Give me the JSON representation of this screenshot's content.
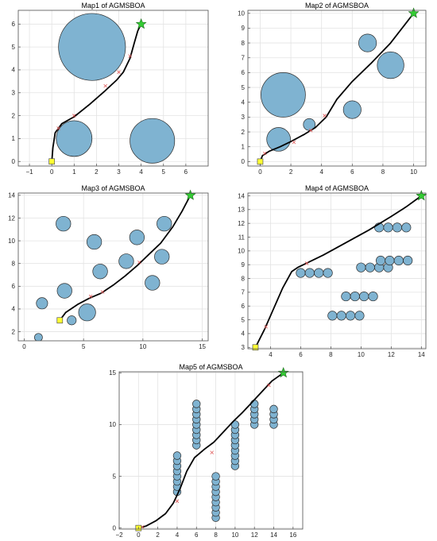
{
  "colors": {
    "obstacle_fill": "#7fb3d1",
    "obstacle_stroke": "#2b2b2b",
    "path": "#000000",
    "waypoint": "#e05a5a",
    "start_marker": "#ffff33",
    "goal_marker": "#33cc33",
    "grid": "#e3e3e3",
    "axes": "#4d4d4d"
  },
  "markers": {
    "start": "yellow-square",
    "goal": "green-star"
  },
  "chart_data": [
    {
      "type": "scatter",
      "title": "Map1 of AGMSBOA",
      "xlim": [
        -1.5,
        7
      ],
      "ylim": [
        -0.2,
        6.6
      ],
      "xticks": [
        -1,
        0,
        1,
        2,
        3,
        4,
        5,
        6
      ],
      "yticks": [
        0,
        1,
        2,
        3,
        4,
        5,
        6
      ],
      "grid": true,
      "start": [
        0,
        0
      ],
      "goal": [
        4,
        6
      ],
      "obstacles": [
        {
          "x": 1.8,
          "y": 5.0,
          "r": 1.5
        },
        {
          "x": 1.0,
          "y": 1.0,
          "r": 0.8
        },
        {
          "x": 4.5,
          "y": 0.9,
          "r": 1.0
        }
      ],
      "path": [
        [
          0,
          0
        ],
        [
          0.05,
          0.6
        ],
        [
          0.15,
          1.25
        ],
        [
          0.45,
          1.65
        ],
        [
          1.0,
          1.95
        ],
        [
          1.7,
          2.5
        ],
        [
          2.4,
          3.1
        ],
        [
          2.9,
          3.55
        ],
        [
          3.2,
          3.9
        ],
        [
          3.5,
          4.5
        ],
        [
          3.7,
          5.2
        ],
        [
          3.85,
          5.7
        ],
        [
          4,
          6
        ]
      ],
      "waypoints": [
        [
          0.3,
          1.45
        ],
        [
          1.0,
          2.0
        ],
        [
          2.4,
          3.3
        ],
        [
          3.0,
          3.9
        ],
        [
          3.5,
          4.6
        ]
      ]
    },
    {
      "type": "scatter",
      "title": "Map2 of AGMSBOA",
      "xlim": [
        -0.8,
        10.8
      ],
      "ylim": [
        -0.3,
        10.2
      ],
      "xticks": [
        0,
        2,
        4,
        6,
        8,
        10
      ],
      "yticks": [
        0,
        1,
        2,
        3,
        4,
        5,
        6,
        7,
        8,
        9,
        10
      ],
      "grid": true,
      "start": [
        0,
        0
      ],
      "goal": [
        10,
        10
      ],
      "obstacles": [
        {
          "x": 1.5,
          "y": 4.5,
          "r": 1.5
        },
        {
          "x": 1.2,
          "y": 1.5,
          "r": 0.8
        },
        {
          "x": 3.2,
          "y": 2.5,
          "r": 0.4
        },
        {
          "x": 6.0,
          "y": 3.5,
          "r": 0.6
        },
        {
          "x": 7.0,
          "y": 8.0,
          "r": 0.6
        },
        {
          "x": 8.5,
          "y": 6.5,
          "r": 0.9
        }
      ],
      "path": [
        [
          0,
          0
        ],
        [
          0.15,
          0.4
        ],
        [
          0.6,
          0.7
        ],
        [
          1.3,
          1.0
        ],
        [
          2.0,
          1.35
        ],
        [
          2.9,
          1.85
        ],
        [
          3.6,
          2.3
        ],
        [
          4.3,
          3.0
        ],
        [
          5.0,
          4.2
        ],
        [
          6.0,
          5.4
        ],
        [
          7.2,
          6.6
        ],
        [
          8.5,
          8.0
        ],
        [
          9.4,
          9.2
        ],
        [
          10,
          10
        ]
      ],
      "waypoints": [
        [
          0.3,
          0.55
        ],
        [
          2.2,
          1.3
        ],
        [
          3.3,
          2.1
        ],
        [
          4.2,
          3.1
        ]
      ]
    },
    {
      "type": "scatter",
      "title": "Map3 of AGMSBOA",
      "xlim": [
        -0.5,
        15.5
      ],
      "ylim": [
        1.2,
        14.2
      ],
      "xticks": [
        0,
        5,
        10,
        15
      ],
      "yticks": [
        2,
        4,
        6,
        8,
        10,
        12,
        14
      ],
      "grid": true,
      "start": [
        3,
        3
      ],
      "goal": [
        14,
        14
      ],
      "obstacles": [
        {
          "x": 3.3,
          "y": 11.5,
          "r": 0.65
        },
        {
          "x": 1.5,
          "y": 4.5,
          "r": 0.5
        },
        {
          "x": 1.2,
          "y": 1.5,
          "r": 0.35
        },
        {
          "x": 4.0,
          "y": 3.0,
          "r": 0.4
        },
        {
          "x": 3.4,
          "y": 5.6,
          "r": 0.65
        },
        {
          "x": 5.3,
          "y": 3.7,
          "r": 0.75
        },
        {
          "x": 5.9,
          "y": 9.9,
          "r": 0.65
        },
        {
          "x": 6.4,
          "y": 7.3,
          "r": 0.65
        },
        {
          "x": 8.6,
          "y": 8.2,
          "r": 0.65
        },
        {
          "x": 9.5,
          "y": 10.3,
          "r": 0.65
        },
        {
          "x": 10.8,
          "y": 6.3,
          "r": 0.65
        },
        {
          "x": 11.6,
          "y": 8.6,
          "r": 0.65
        },
        {
          "x": 11.8,
          "y": 11.5,
          "r": 0.65
        }
      ],
      "path": [
        [
          3,
          3
        ],
        [
          3.5,
          3.7
        ],
        [
          4.5,
          4.4
        ],
        [
          5.5,
          4.95
        ],
        [
          6.5,
          5.4
        ],
        [
          7.5,
          6.1
        ],
        [
          8.5,
          6.9
        ],
        [
          9.5,
          7.8
        ],
        [
          10.5,
          8.8
        ],
        [
          11.5,
          9.8
        ],
        [
          12.5,
          11.2
        ],
        [
          13.3,
          12.6
        ],
        [
          14,
          14
        ]
      ],
      "waypoints": [
        [
          5.6,
          5.1
        ],
        [
          6.6,
          5.5
        ],
        [
          9.7,
          8.1
        ]
      ]
    },
    {
      "type": "scatter",
      "title": "Map4 of AGMSBOA",
      "xlim": [
        2.5,
        14.3
      ],
      "ylim": [
        2.9,
        14.2
      ],
      "xticks": [
        4,
        6,
        8,
        10,
        12,
        14
      ],
      "yticks": [
        3,
        4,
        5,
        6,
        7,
        8,
        9,
        10,
        11,
        12,
        13,
        14
      ],
      "grid": true,
      "start": [
        3,
        3
      ],
      "goal": [
        14,
        14
      ],
      "obstacles": [
        {
          "x": 6.0,
          "y": 8.4,
          "r": 0.33
        },
        {
          "x": 6.6,
          "y": 8.4,
          "r": 0.33
        },
        {
          "x": 7.2,
          "y": 8.4,
          "r": 0.33
        },
        {
          "x": 7.8,
          "y": 8.4,
          "r": 0.33
        },
        {
          "x": 8.1,
          "y": 5.3,
          "r": 0.33
        },
        {
          "x": 8.7,
          "y": 5.3,
          "r": 0.33
        },
        {
          "x": 9.3,
          "y": 5.3,
          "r": 0.33
        },
        {
          "x": 9.9,
          "y": 5.3,
          "r": 0.33
        },
        {
          "x": 9.0,
          "y": 6.7,
          "r": 0.33
        },
        {
          "x": 9.6,
          "y": 6.7,
          "r": 0.33
        },
        {
          "x": 10.2,
          "y": 6.7,
          "r": 0.33
        },
        {
          "x": 10.8,
          "y": 6.7,
          "r": 0.33
        },
        {
          "x": 10.0,
          "y": 8.8,
          "r": 0.33
        },
        {
          "x": 10.6,
          "y": 8.8,
          "r": 0.33
        },
        {
          "x": 11.2,
          "y": 8.8,
          "r": 0.33
        },
        {
          "x": 11.8,
          "y": 8.8,
          "r": 0.33
        },
        {
          "x": 11.3,
          "y": 9.3,
          "r": 0.33
        },
        {
          "x": 11.9,
          "y": 9.3,
          "r": 0.33
        },
        {
          "x": 12.5,
          "y": 9.3,
          "r": 0.33
        },
        {
          "x": 13.1,
          "y": 9.3,
          "r": 0.33
        },
        {
          "x": 11.2,
          "y": 11.7,
          "r": 0.33
        },
        {
          "x": 11.8,
          "y": 11.7,
          "r": 0.33
        },
        {
          "x": 12.4,
          "y": 11.7,
          "r": 0.33
        },
        {
          "x": 13.0,
          "y": 11.7,
          "r": 0.33
        }
      ],
      "path": [
        [
          3,
          3
        ],
        [
          3.6,
          4.3
        ],
        [
          4.2,
          5.8
        ],
        [
          4.8,
          7.3
        ],
        [
          5.4,
          8.5
        ],
        [
          5.8,
          8.8
        ],
        [
          7.5,
          9.7
        ],
        [
          9.0,
          10.6
        ],
        [
          10.5,
          11.5
        ],
        [
          12.0,
          12.5
        ],
        [
          13.0,
          13.2
        ],
        [
          14,
          14
        ]
      ],
      "waypoints": [
        [
          3.7,
          4.5
        ],
        [
          6.4,
          9.1
        ]
      ]
    },
    {
      "type": "scatter",
      "title": "Map5 of AGMSBOA",
      "xlim": [
        -2,
        17
      ],
      "ylim": [
        -0.1,
        15.1
      ],
      "xticks": [
        -2,
        0,
        2,
        4,
        6,
        8,
        10,
        12,
        14,
        16
      ],
      "yticks": [
        0,
        5,
        10,
        15
      ],
      "grid": true,
      "start": [
        0,
        0
      ],
      "goal": [
        15,
        15
      ],
      "obstacles": [
        {
          "x": 4,
          "y": 3.5,
          "r": 0.4
        },
        {
          "x": 4,
          "y": 4.0,
          "r": 0.4
        },
        {
          "x": 4,
          "y": 4.5,
          "r": 0.4
        },
        {
          "x": 4,
          "y": 5.0,
          "r": 0.4
        },
        {
          "x": 4,
          "y": 5.5,
          "r": 0.4
        },
        {
          "x": 4,
          "y": 6.0,
          "r": 0.4
        },
        {
          "x": 4,
          "y": 6.5,
          "r": 0.4
        },
        {
          "x": 4,
          "y": 7.0,
          "r": 0.4
        },
        {
          "x": 6,
          "y": 8.0,
          "r": 0.4
        },
        {
          "x": 6,
          "y": 8.5,
          "r": 0.4
        },
        {
          "x": 6,
          "y": 9.0,
          "r": 0.4
        },
        {
          "x": 6,
          "y": 9.5,
          "r": 0.4
        },
        {
          "x": 6,
          "y": 10.0,
          "r": 0.4
        },
        {
          "x": 6,
          "y": 10.5,
          "r": 0.4
        },
        {
          "x": 6,
          "y": 11.0,
          "r": 0.4
        },
        {
          "x": 6,
          "y": 11.5,
          "r": 0.4
        },
        {
          "x": 6,
          "y": 12.0,
          "r": 0.4
        },
        {
          "x": 8,
          "y": 1.0,
          "r": 0.4
        },
        {
          "x": 8,
          "y": 1.5,
          "r": 0.4
        },
        {
          "x": 8,
          "y": 2.0,
          "r": 0.4
        },
        {
          "x": 8,
          "y": 2.5,
          "r": 0.4
        },
        {
          "x": 8,
          "y": 3.0,
          "r": 0.4
        },
        {
          "x": 8,
          "y": 3.5,
          "r": 0.4
        },
        {
          "x": 8,
          "y": 4.0,
          "r": 0.4
        },
        {
          "x": 8,
          "y": 4.5,
          "r": 0.4
        },
        {
          "x": 8,
          "y": 5.0,
          "r": 0.4
        },
        {
          "x": 10,
          "y": 6.0,
          "r": 0.4
        },
        {
          "x": 10,
          "y": 6.5,
          "r": 0.4
        },
        {
          "x": 10,
          "y": 7.0,
          "r": 0.4
        },
        {
          "x": 10,
          "y": 7.5,
          "r": 0.4
        },
        {
          "x": 10,
          "y": 8.0,
          "r": 0.4
        },
        {
          "x": 10,
          "y": 8.5,
          "r": 0.4
        },
        {
          "x": 10,
          "y": 9.0,
          "r": 0.4
        },
        {
          "x": 10,
          "y": 9.5,
          "r": 0.4
        },
        {
          "x": 10,
          "y": 10.0,
          "r": 0.4
        },
        {
          "x": 12,
          "y": 10.0,
          "r": 0.4
        },
        {
          "x": 12,
          "y": 10.5,
          "r": 0.4
        },
        {
          "x": 12,
          "y": 11.0,
          "r": 0.4
        },
        {
          "x": 12,
          "y": 11.5,
          "r": 0.4
        },
        {
          "x": 12,
          "y": 12.0,
          "r": 0.4
        },
        {
          "x": 14,
          "y": 10.0,
          "r": 0.4
        },
        {
          "x": 14,
          "y": 10.5,
          "r": 0.4
        },
        {
          "x": 14,
          "y": 11.0,
          "r": 0.4
        },
        {
          "x": 14,
          "y": 11.5,
          "r": 0.4
        }
      ],
      "path": [
        [
          0,
          0
        ],
        [
          0.8,
          0.2
        ],
        [
          1.8,
          0.7
        ],
        [
          2.8,
          1.4
        ],
        [
          3.6,
          2.4
        ],
        [
          4.3,
          3.8
        ],
        [
          5.0,
          5.5
        ],
        [
          5.8,
          6.8
        ],
        [
          6.8,
          7.6
        ],
        [
          7.8,
          8.3
        ],
        [
          8.8,
          9.3
        ],
        [
          9.8,
          10.3
        ],
        [
          10.8,
          11.2
        ],
        [
          11.8,
          12.2
        ],
        [
          12.8,
          13.2
        ],
        [
          13.8,
          14.2
        ],
        [
          15,
          15
        ]
      ],
      "waypoints": [
        [
          0.4,
          0.1
        ],
        [
          4.0,
          2.6
        ],
        [
          7.6,
          7.3
        ],
        [
          13.5,
          13.8
        ]
      ]
    }
  ]
}
